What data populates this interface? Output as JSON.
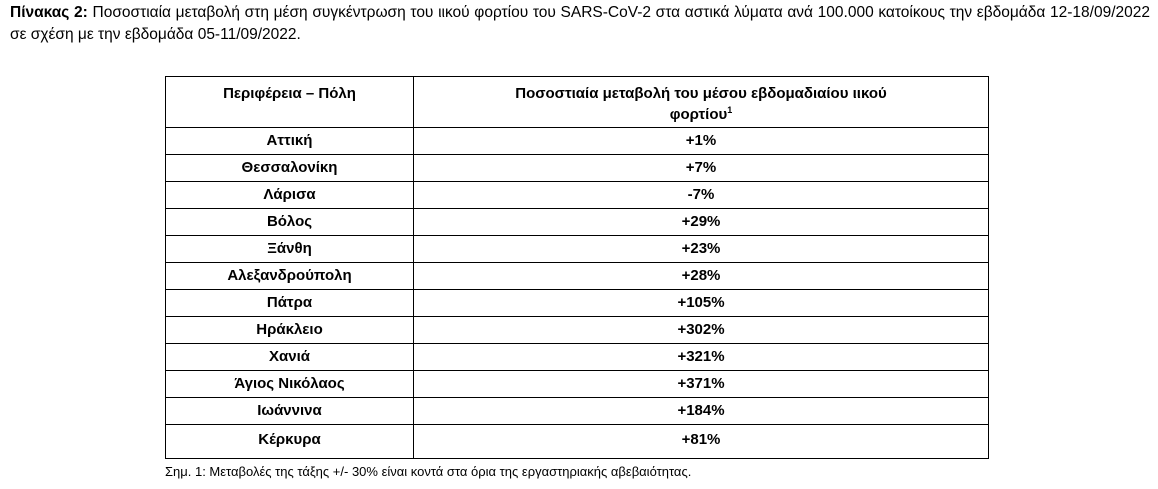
{
  "caption": {
    "label": "Πίνακας 2:",
    "text": "Ποσοστιαία μεταβολή στη μέση συγκέντρωση του ιικού φορτίου του SARS-CoV-2 στα αστικά λύματα ανά 100.000 κατοίκους την εβδομάδα 12-18/09/2022 σε σχέση με την εβδομάδα 05-11/09/2022."
  },
  "table": {
    "headers": {
      "region": "Περιφέρεια – Πόλη",
      "change_line1": "Ποσοστιαία μεταβολή του μέσου εβδομαδιαίου ιικού",
      "change_line2": "φορτίου",
      "change_note": "1"
    },
    "rows": [
      {
        "region": "Αττική",
        "change": "+1%"
      },
      {
        "region": "Θεσσαλονίκη",
        "change": "+7%"
      },
      {
        "region": "Λάρισα",
        "change": "-7%"
      },
      {
        "region": "Βόλος",
        "change": "+29%"
      },
      {
        "region": "Ξάνθη",
        "change": "+23%"
      },
      {
        "region": "Αλεξανδρούπολη",
        "change": "+28%"
      },
      {
        "region": "Πάτρα",
        "change": "+105%"
      },
      {
        "region": "Ηράκλειο",
        "change": "+302%"
      },
      {
        "region": "Χανιά",
        "change": "+321%"
      },
      {
        "region": "Άγιος Νικόλαος",
        "change": "+371%"
      },
      {
        "region": "Ιωάννινα",
        "change": "+184%"
      },
      {
        "region": "Κέρκυρα",
        "change": "+81%"
      }
    ]
  },
  "footnote": "Σημ. 1: Μεταβολές της τάξης +/- 30% είναι κοντά στα όρια της εργαστηριακής αβεβαιότητας."
}
